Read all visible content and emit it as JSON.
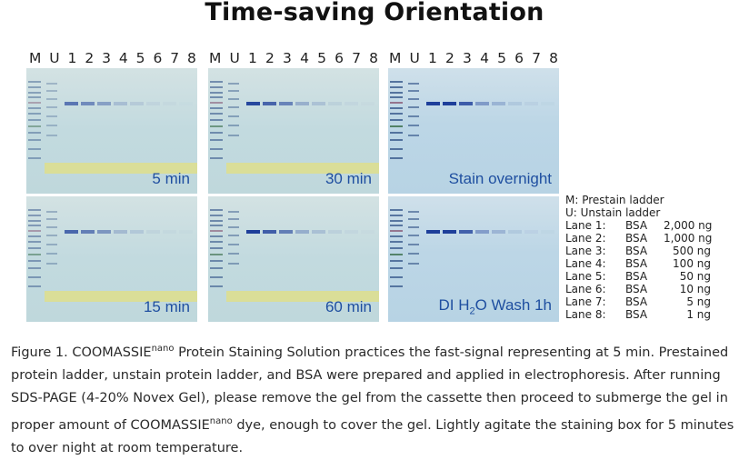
{
  "title": "Time-saving Orientation",
  "lane_labels": [
    "M",
    "U",
    "1",
    "2",
    "3",
    "4",
    "5",
    "6",
    "7",
    "8"
  ],
  "gels": [
    {
      "label": "5 min"
    },
    {
      "label": "30 min"
    },
    {
      "label": "Stain overnight"
    },
    {
      "label": "15 min"
    },
    {
      "label": "60 min"
    },
    {
      "label_main": "DI H",
      "label_sub": "2",
      "label_tail": "O Wash 1h"
    }
  ],
  "legend": {
    "marker_lines": [
      "M: Prestain ladder",
      "U: Unstain ladder"
    ],
    "lanes": [
      {
        "lane": "Lane 1:",
        "sample": "BSA",
        "amount": "2,000 ng"
      },
      {
        "lane": "Lane 2:",
        "sample": "BSA",
        "amount": "1,000 ng"
      },
      {
        "lane": "Lane 3:",
        "sample": "BSA",
        "amount": "500 ng"
      },
      {
        "lane": "Lane 4:",
        "sample": "BSA",
        "amount": "100 ng"
      },
      {
        "lane": "Lane 5:",
        "sample": "BSA",
        "amount": "50 ng"
      },
      {
        "lane": "Lane 6:",
        "sample": "BSA",
        "amount": "10 ng"
      },
      {
        "lane": "Lane 7:",
        "sample": "BSA",
        "amount": "5 ng"
      },
      {
        "lane": "Lane 8:",
        "sample": "BSA",
        "amount": "1 ng"
      }
    ]
  },
  "caption": {
    "part1": "Figure 1. COOMASSIE",
    "sup1": "nano",
    "part2": " Protein Staining Solution practices the fast-signal representing at 5 min. Prestained protein ladder, unstain protein ladder, and BSA were prepared and applied in electrophoresis. After running SDS-PAGE (4-20% Novex Gel), please remove the gel from the cassette then proceed to submerge the gel in proper amount of COOMASSIE",
    "sup2": "nano",
    "part3": " dye, enough to cover the gel. Lightly agitate the staining box for 5 minutes to over night at room temperature."
  }
}
